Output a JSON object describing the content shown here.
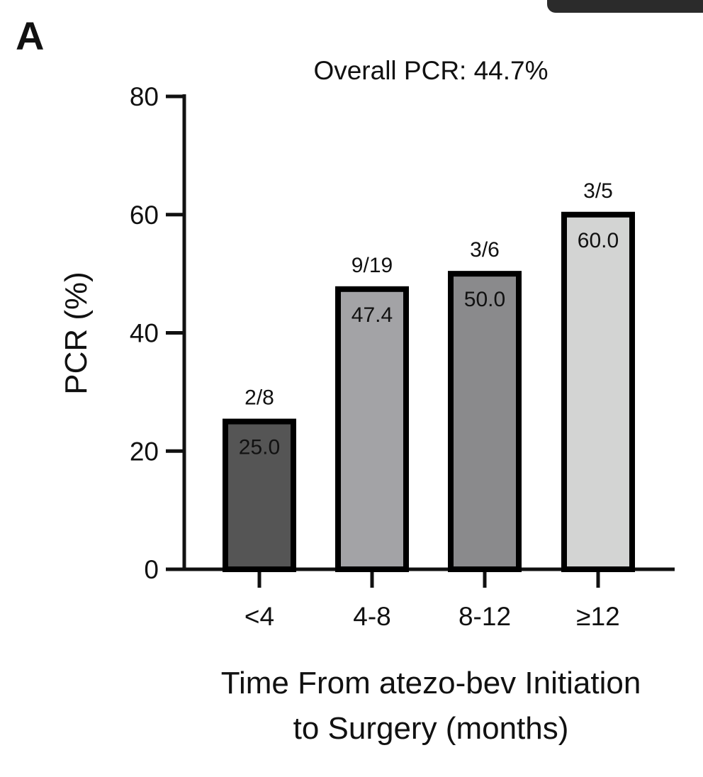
{
  "panel_label": "A",
  "chart_data": {
    "type": "bar",
    "title": "Overall PCR: 44.7%",
    "ylabel": "PCR (%)",
    "xlabel_lines": [
      "Time From atezo-bev Initiation",
      "to Surgery (months)"
    ],
    "categories": [
      "<4",
      "4-8",
      "8-12",
      "≥12"
    ],
    "values": [
      25.0,
      47.4,
      50.0,
      60.0
    ],
    "value_labels": [
      "25.0",
      "47.4",
      "50.0",
      "60.0"
    ],
    "fraction_labels": [
      "2/8",
      "9/19",
      "3/6",
      "3/5"
    ],
    "ylim": [
      0,
      80
    ],
    "yticks": [
      0,
      20,
      40,
      60,
      80
    ],
    "bar_colors": [
      "#555555",
      "#a3a3a6",
      "#8a8a8c",
      "#d3d4d3"
    ],
    "grid": false,
    "legend": "none"
  }
}
